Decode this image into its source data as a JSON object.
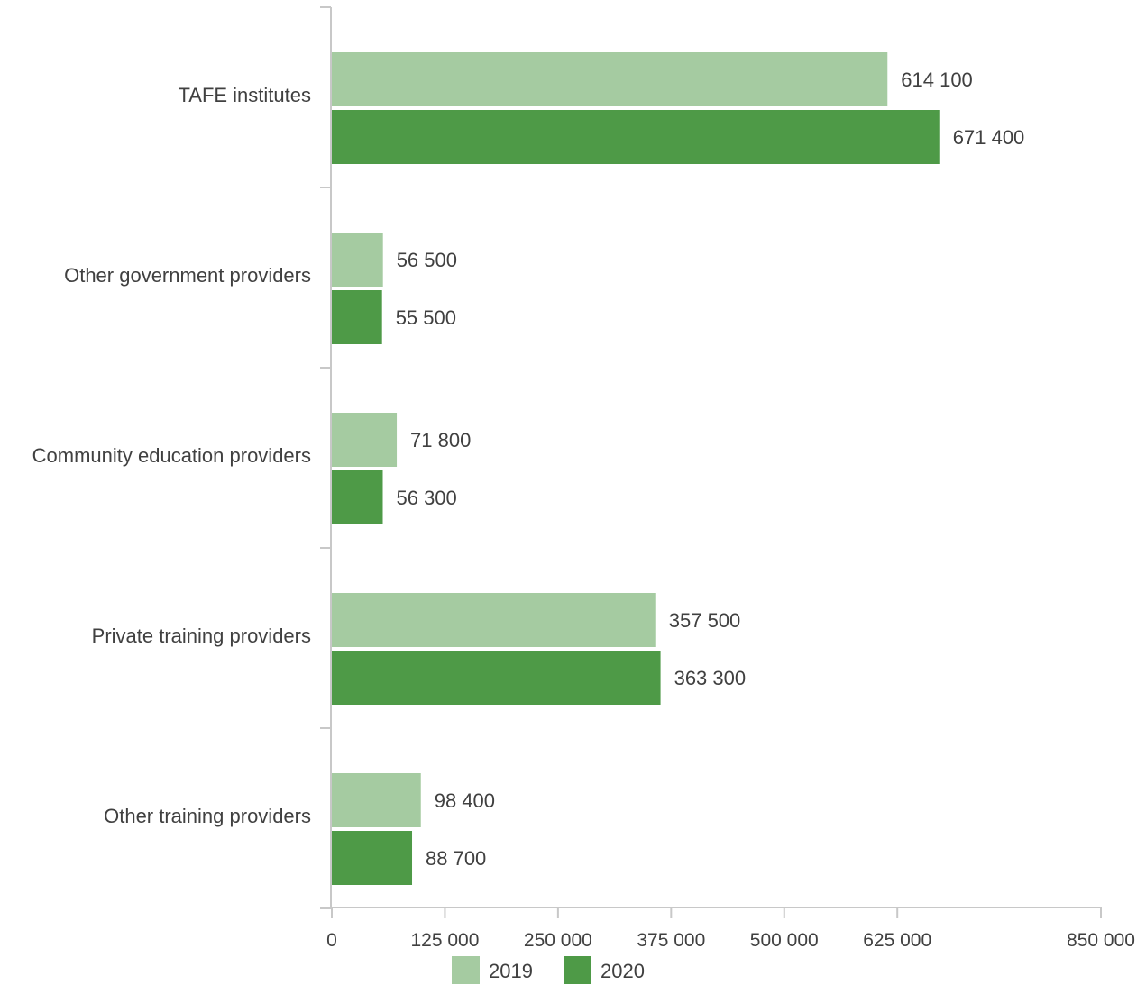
{
  "chart_data": {
    "type": "bar",
    "orientation": "horizontal",
    "categories": [
      "TAFE institutes",
      "Other government providers",
      "Community education providers",
      "Private training providers",
      "Other training providers"
    ],
    "series": [
      {
        "name": "2019",
        "color": "#a5cba1",
        "values": [
          614100,
          56500,
          71800,
          357500,
          98400
        ],
        "labels": [
          "614 100",
          "56 500",
          "71 800",
          "357 500",
          "98 400"
        ]
      },
      {
        "name": "2020",
        "color": "#4e9a47",
        "values": [
          671400,
          55500,
          56300,
          363300,
          88700
        ],
        "labels": [
          "671 400",
          "55 500",
          "56 300",
          "363 300",
          "88 700"
        ]
      }
    ],
    "x_ticks": [
      0,
      125000,
      250000,
      375000,
      500000,
      625000,
      850000
    ],
    "x_tick_labels": [
      "0",
      "125 000",
      "250 000",
      "375 000",
      "500 000",
      "625 000",
      "850 000"
    ],
    "xlim": [
      0,
      850000
    ],
    "grid": false,
    "legend_position": "bottom-center",
    "title": "",
    "xlabel": "",
    "ylabel": ""
  }
}
